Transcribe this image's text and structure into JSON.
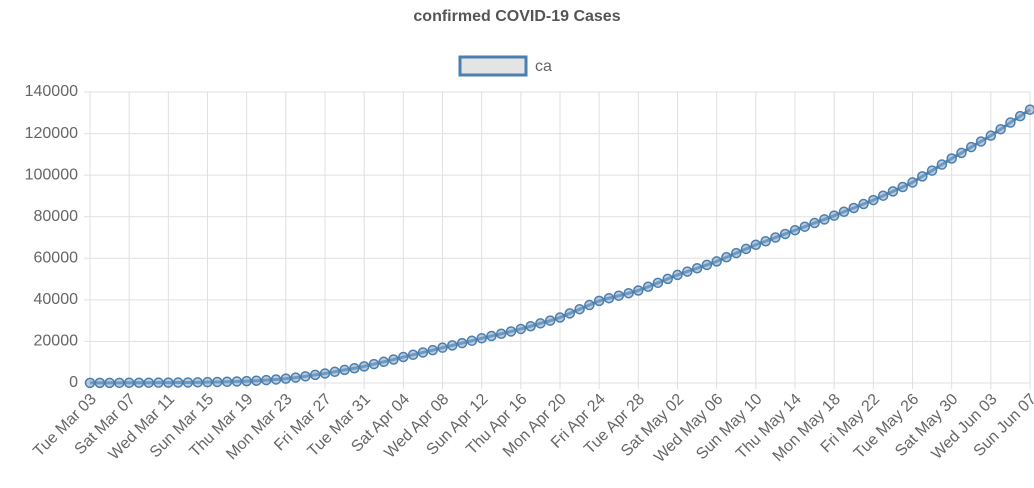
{
  "chart_data": {
    "type": "line",
    "title": "confirmed COVID-19 Cases",
    "categories": [
      "Tue Mar 03",
      null,
      null,
      null,
      "Sat Mar 07",
      null,
      null,
      null,
      "Wed Mar 11",
      null,
      null,
      null,
      "Sun Mar 15",
      null,
      null,
      null,
      "Thu Mar 19",
      null,
      null,
      null,
      "Mon Mar 23",
      null,
      null,
      null,
      "Fri Mar 27",
      null,
      null,
      null,
      "Tue Mar 31",
      null,
      null,
      null,
      "Sat Apr 04",
      null,
      null,
      null,
      "Wed Apr 08",
      null,
      null,
      null,
      "Sun Apr 12",
      null,
      null,
      null,
      "Thu Apr 16",
      null,
      null,
      null,
      "Mon Apr 20",
      null,
      null,
      null,
      "Fri Apr 24",
      null,
      null,
      null,
      "Tue Apr 28",
      null,
      null,
      null,
      "Sat May 02",
      null,
      null,
      null,
      "Wed May 06",
      null,
      null,
      null,
      "Sun May 10",
      null,
      null,
      null,
      "Thu May 14",
      null,
      null,
      null,
      "Mon May 18",
      null,
      null,
      null,
      "Fri May 22",
      null,
      null,
      null,
      "Tue May 26",
      null,
      null,
      null,
      "Sat May 30",
      null,
      null,
      null,
      "Wed Jun 03",
      null,
      null,
      null,
      "Sun Jun 07"
    ],
    "series": [
      {
        "name": "ca",
        "color": "#4a7fb0",
        "values": [
          50,
          60,
          70,
          85,
          100,
          120,
          140,
          160,
          180,
          220,
          270,
          330,
          400,
          500,
          600,
          750,
          900,
          1100,
          1400,
          1700,
          2100,
          2600,
          3200,
          3900,
          4600,
          5400,
          6300,
          7100,
          8000,
          9100,
          10200,
          11300,
          12500,
          13600,
          14700,
          15800,
          17000,
          18100,
          19200,
          20300,
          21500,
          22600,
          23700,
          24800,
          26000,
          27300,
          28700,
          30000,
          31500,
          33500,
          35500,
          37500,
          39500,
          40800,
          42000,
          43200,
          44500,
          46300,
          48200,
          50100,
          52000,
          53600,
          55200,
          56800,
          58500,
          60500,
          62500,
          64500,
          66500,
          68200,
          70000,
          71700,
          73500,
          75200,
          77000,
          78700,
          80500,
          82400,
          84200,
          86100,
          88000,
          90100,
          92200,
          94300,
          96500,
          99400,
          102200,
          105100,
          108000,
          110700,
          113500,
          116200,
          119000,
          122100,
          125300,
          128400,
          131500
        ]
      }
    ],
    "ylim": [
      0,
      140000
    ],
    "yticks": [
      0,
      20000,
      40000,
      60000,
      80000,
      100000,
      120000,
      140000
    ],
    "grid": true,
    "legend": "top"
  }
}
